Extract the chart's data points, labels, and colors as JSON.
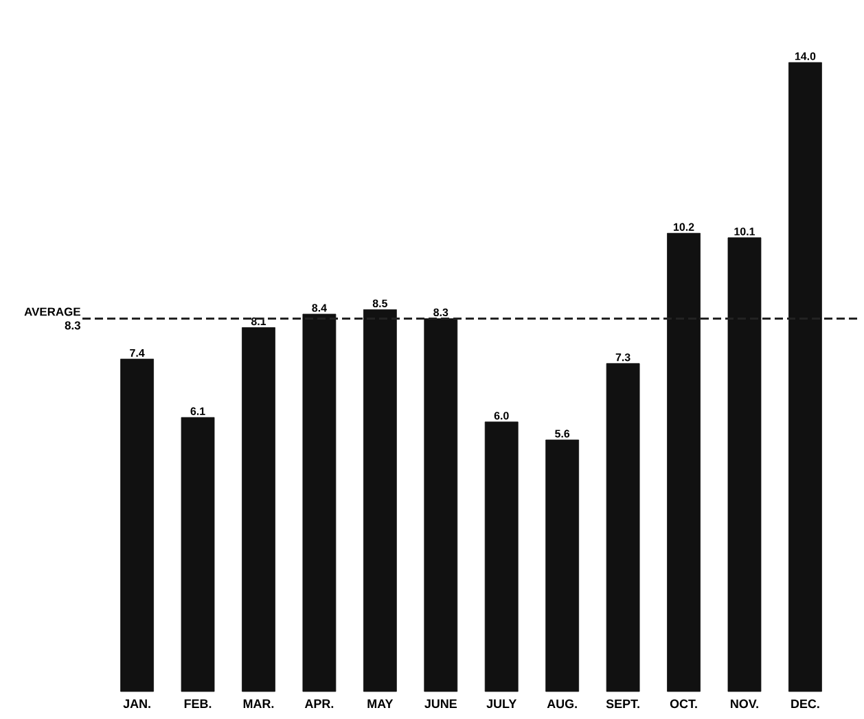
{
  "chart_data": {
    "type": "bar",
    "categories": [
      "JAN.",
      "FEB.",
      "MAR.",
      "APR.",
      "MAY",
      "JUNE",
      "JULY",
      "AUG.",
      "SEPT.",
      "OCT.",
      "NOV.",
      "DEC."
    ],
    "values": [
      7.4,
      6.1,
      8.1,
      8.4,
      8.5,
      8.3,
      6.0,
      5.6,
      7.3,
      10.2,
      10.1,
      14.0
    ],
    "value_labels": [
      "7.4",
      "6.1",
      "8.1",
      "8.4",
      "8.5",
      "8.3",
      "6.0",
      "5.6",
      "7.3",
      "10.2",
      "10.1",
      "14.0"
    ],
    "color": "#111111",
    "ref_lines": [
      {
        "axis": "y",
        "value": 8.3,
        "label": "AVERAGE 8.3",
        "line_style": "dashed",
        "color": "#222222"
      }
    ]
  }
}
